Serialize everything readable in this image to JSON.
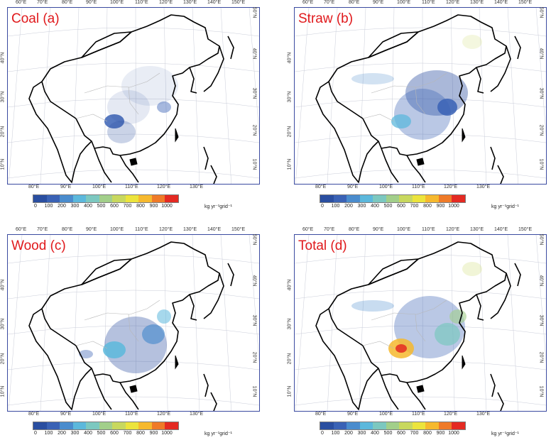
{
  "panels": [
    {
      "title": "Coal (a)",
      "key": "coal"
    },
    {
      "title": "Straw (b)",
      "key": "straw"
    },
    {
      "title": "Wood (c)",
      "key": "wood"
    },
    {
      "title": "Total (d)",
      "key": "total"
    }
  ],
  "top_lon_labels": [
    "60°E",
    "70°E",
    "80°E",
    "90°E",
    "100°E",
    "110°E",
    "120°E",
    "130°E",
    "140°E",
    "150°E"
  ],
  "bottom_lon_labels": [
    "80°E",
    "90°E",
    "100°E",
    "110°E",
    "120°E",
    "130°E"
  ],
  "left_lat_labels": [
    "10°N",
    "20°N",
    "30°N",
    "40°N"
  ],
  "right_lat_labels": [
    "10°N",
    "20°N",
    "30°N",
    "40°N",
    "50°N"
  ],
  "colorbar": {
    "ticks": [
      "0",
      "100",
      "200",
      "300",
      "400",
      "500",
      "600",
      "700",
      "800",
      "900",
      "1000"
    ],
    "unit": "kg yr⁻¹grid⁻¹",
    "colors": [
      "#2a4ea0",
      "#3a62b5",
      "#4a8ccd",
      "#5cb8dc",
      "#7cc8c0",
      "#a2cf8a",
      "#c8d85e",
      "#ece43c",
      "#f6b92e",
      "#ef7a28",
      "#e42a22"
    ]
  }
}
